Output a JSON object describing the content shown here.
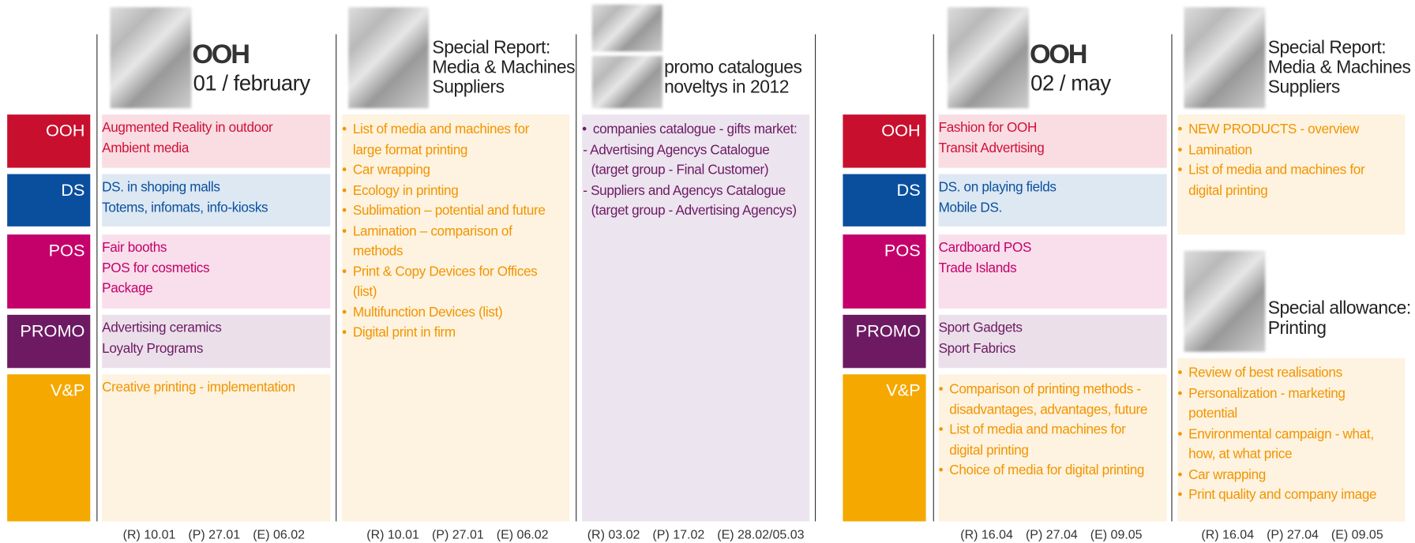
{
  "row_labels": [
    "OOH",
    "DS",
    "POS",
    "PROMO",
    "V&P"
  ],
  "logo": "OOH",
  "columns": [
    {
      "header": [
        "01 / february"
      ],
      "rows": [
        [
          "Augmented Reality in outdoor",
          "Ambient media"
        ],
        [
          "DS. in shoping malls",
          "Totems, infomats, info-kiosks"
        ],
        [
          "Fair booths",
          "POS for cosmetics",
          "Package"
        ],
        [
          "Advertising ceramics",
          "Loyalty Programs"
        ],
        [
          "Creative printing - implementation"
        ]
      ],
      "dates": [
        "(R) 10.01",
        "(P) 27.01",
        "(E) 06.02"
      ]
    },
    {
      "header": [
        "Special Report:",
        "Media & Machines",
        "Suppliers"
      ],
      "items": [
        "List of media and machines for large format printing",
        "Car wrapping",
        "Ecology in printing",
        "Sublimation – potential and future",
        "Lamination – comparison of methods",
        "Print & Copy Devices for Offices (list)",
        "Multifunction Devices (list)",
        "Digital print in firm"
      ],
      "dates": [
        "(R) 10.01",
        "(P) 27.01",
        "(E) 06.02"
      ]
    },
    {
      "header": [
        "promo catalogues",
        "noveltys in 2012"
      ],
      "items": [
        "companies catalogue - gifts market:",
        "- Advertising Agencys Catalogue (target group - Final Customer)",
        "- Suppliers and Agencys Catalogue (target group - Advertising Agencys)"
      ],
      "dates": [
        "(R) 03.02",
        "(P) 17.02",
        "(E) 28.02/05.03"
      ]
    },
    {
      "header": [
        "02 / may"
      ],
      "rows": [
        [
          "Fashion for OOH",
          "Transit Advertising"
        ],
        [
          "DS. on playing fields",
          "Mobile DS."
        ],
        [
          "Cardboard POS",
          "Trade Islands"
        ],
        [
          "Sport Gadgets",
          "Sport Fabrics"
        ],
        [
          "Comparison of printing methods - disadvantages, advantages, future",
          "List of media and machines for digital printing",
          "Choice of media for digital printing"
        ]
      ],
      "dates": [
        "(R) 16.04",
        "(P) 27.04",
        "(E) 09.05"
      ]
    },
    {
      "header": [
        "Special Report:",
        "Media & Machines",
        "Suppliers"
      ],
      "items": [
        "NEW PRODUCTS - overview",
        "Lamination",
        "List of media and machines for digital printing"
      ],
      "sub_header": [
        "Special allowance:",
        "Printing"
      ],
      "sub_items": [
        "Review of best realisations",
        "Personalization - marketing potential",
        "Environmental campaign - what, how, at what price",
        "Car wrapping",
        "Print quality and company image"
      ],
      "dates": [
        "(R) 16.04",
        "(P) 27.04",
        "(E) 09.05"
      ]
    }
  ]
}
